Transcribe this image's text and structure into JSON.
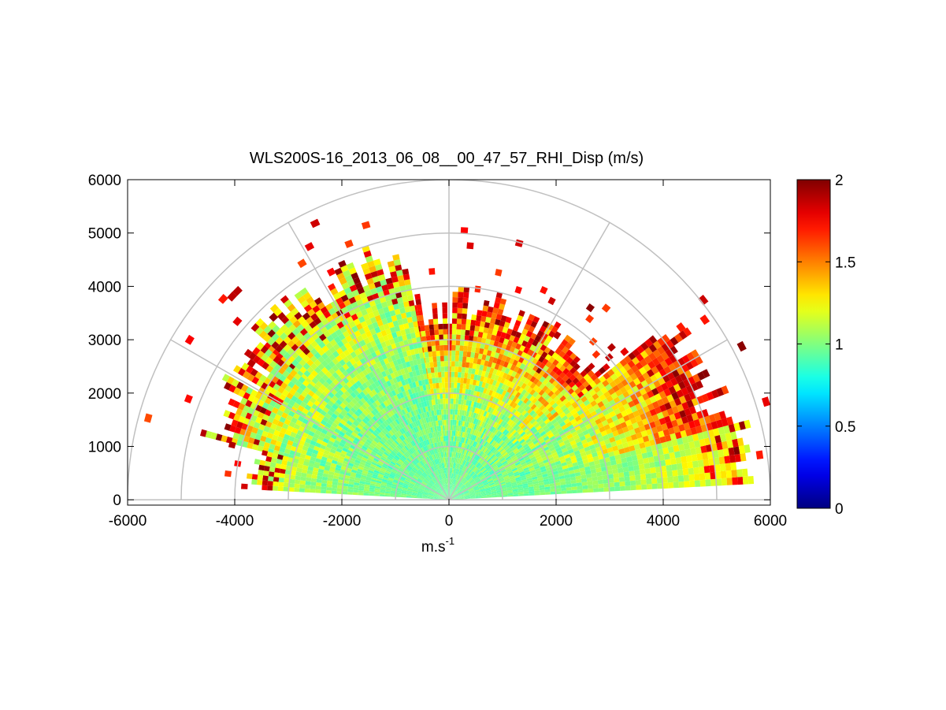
{
  "chart_data": {
    "type": "heatmap",
    "subtype": "polar-rhi-sector",
    "title": "WLS200S-16_2013_06_08__00_47_57_RHI_Disp (m/s)",
    "xlabel_base": "m.s",
    "xlabel_exp": "-1",
    "ylabel": "",
    "xlim": [
      -6000,
      6000
    ],
    "ylim": [
      -100,
      6000
    ],
    "x_ticks": [
      -6000,
      -4000,
      -2000,
      0,
      2000,
      4000,
      6000
    ],
    "x_tick_labels": [
      "-6000",
      "-4000",
      "-2000",
      "0",
      "2000",
      "4000",
      "6000"
    ],
    "y_ticks": [
      0,
      1000,
      2000,
      3000,
      4000,
      5000,
      6000
    ],
    "y_tick_labels": [
      "0",
      "1000",
      "2000",
      "3000",
      "4000",
      "5000",
      "6000"
    ],
    "range_rings": [
      1000,
      2000,
      3000,
      4000,
      5000,
      6000
    ],
    "spokes_deg": [
      0,
      30,
      60,
      90,
      120,
      150,
      180
    ],
    "colorbar": {
      "colormap": "jet",
      "clim": [
        0,
        2
      ],
      "ticks": [
        0,
        0.5,
        1,
        1.5,
        2
      ],
      "tick_labels": [
        "0",
        "0.5",
        "1",
        "1.5",
        "2"
      ]
    },
    "sectors": [
      {
        "elev_deg_start": 3,
        "elev_deg_end": 15,
        "max_range_m": 5500,
        "near_value": 0.95,
        "far_value": 1.3,
        "noise": 0.25
      },
      {
        "elev_deg_start": 15,
        "elev_deg_end": 38,
        "max_range_m": 5200,
        "near_value": 0.95,
        "far_value": 1.75,
        "noise": 0.45
      },
      {
        "elev_deg_start": 38,
        "elev_deg_end": 100,
        "max_range_m": 3600,
        "near_value": 0.95,
        "far_value": 1.6,
        "noise": 0.5
      },
      {
        "elev_deg_start": 100,
        "elev_deg_end": 140,
        "max_range_m": 4600,
        "near_value": 0.95,
        "far_value": 1.25,
        "noise": 0.35
      },
      {
        "elev_deg_start": 140,
        "elev_deg_end": 165,
        "max_range_m": 4400,
        "near_value": 0.95,
        "far_value": 1.3,
        "noise": 0.4
      },
      {
        "elev_deg_start": 165,
        "elev_deg_end": 177,
        "max_range_m": 3700,
        "near_value": 0.95,
        "far_value": 1.2,
        "noise": 0.25
      }
    ]
  }
}
